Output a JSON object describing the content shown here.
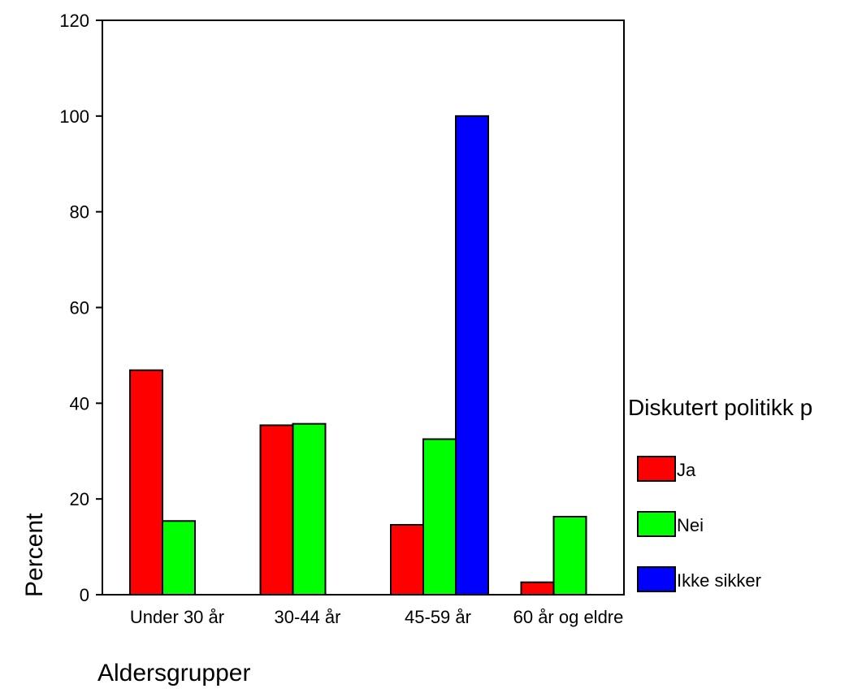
{
  "chart_data": {
    "type": "bar",
    "categories": [
      "Under 30 år",
      "30-44 år",
      "45-59 år",
      "60 år og eldre"
    ],
    "series": [
      {
        "name": "Ja",
        "color": "#ff0000",
        "values": [
          46.9,
          35.4,
          14.6,
          2.6
        ]
      },
      {
        "name": "Nei",
        "color": "#00ff00",
        "values": [
          15.4,
          35.7,
          32.5,
          16.3
        ]
      },
      {
        "name": "Ikke sikker",
        "color": "#0000ff",
        "values": [
          0,
          0,
          100.0,
          0
        ]
      }
    ],
    "xlabel": "Aldersgrupper",
    "ylabel": "Percent",
    "ylim": [
      0,
      120
    ],
    "yticks": [
      0,
      20,
      40,
      60,
      80,
      100,
      120
    ],
    "legend_title": "Diskutert politikk p",
    "legend_position": "right",
    "grid": false
  }
}
